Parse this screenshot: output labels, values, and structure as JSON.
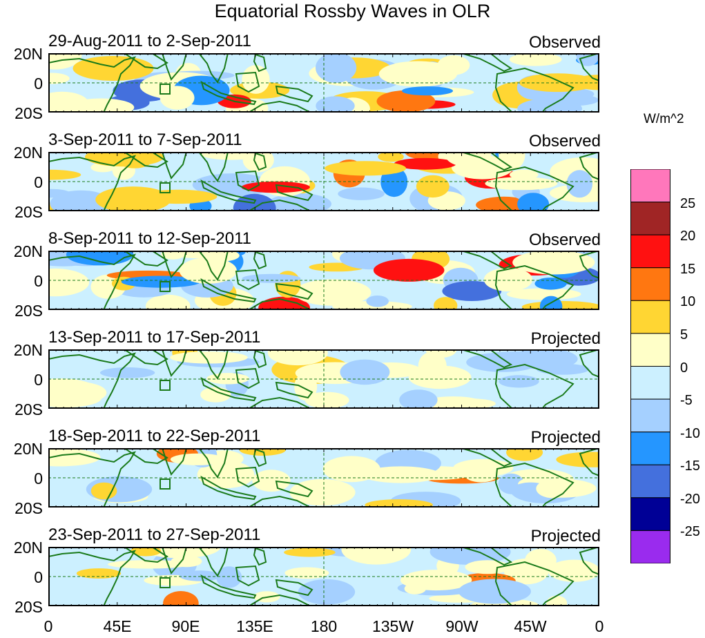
{
  "title": "Equatorial Rossby Waves in OLR",
  "panels": [
    {
      "dates": "29-Aug-2011 to 2-Sep-2011",
      "status": "Observed",
      "seed": 1
    },
    {
      "dates": "3-Sep-2011 to 7-Sep-2011",
      "status": "Observed",
      "seed": 2
    },
    {
      "dates": "8-Sep-2011 to 12-Sep-2011",
      "status": "Observed",
      "seed": 3
    },
    {
      "dates": "13-Sep-2011 to 17-Sep-2011",
      "status": "Projected",
      "seed": 4
    },
    {
      "dates": "18-Sep-2011 to 22-Sep-2011",
      "status": "Projected",
      "seed": 5
    },
    {
      "dates": "23-Sep-2011 to 27-Sep-2011",
      "status": "Projected",
      "seed": 6
    }
  ],
  "lat_labels": [
    "20N",
    "0",
    "20S"
  ],
  "lon_labels": [
    "0",
    "45E",
    "90E",
    "135E",
    "180",
    "135W",
    "90W",
    "45W",
    "0"
  ],
  "colorbar": {
    "units": "W/m^2",
    "ticks": [
      "25",
      "20",
      "15",
      "10",
      "5",
      "0",
      "-5",
      "-10",
      "-15",
      "-20",
      "-25"
    ],
    "colors": [
      "#ff77bb",
      "#a02525",
      "#ff1111",
      "#ff7711",
      "#ffd633",
      "#ffffc8",
      "#ccf0ff",
      "#a5d0ff",
      "#2596ff",
      "#4470dd",
      "#000096",
      "#9a2bee"
    ]
  },
  "colors": {
    "coast": "#1a7a1a",
    "grid": "#1a7a1a"
  }
}
